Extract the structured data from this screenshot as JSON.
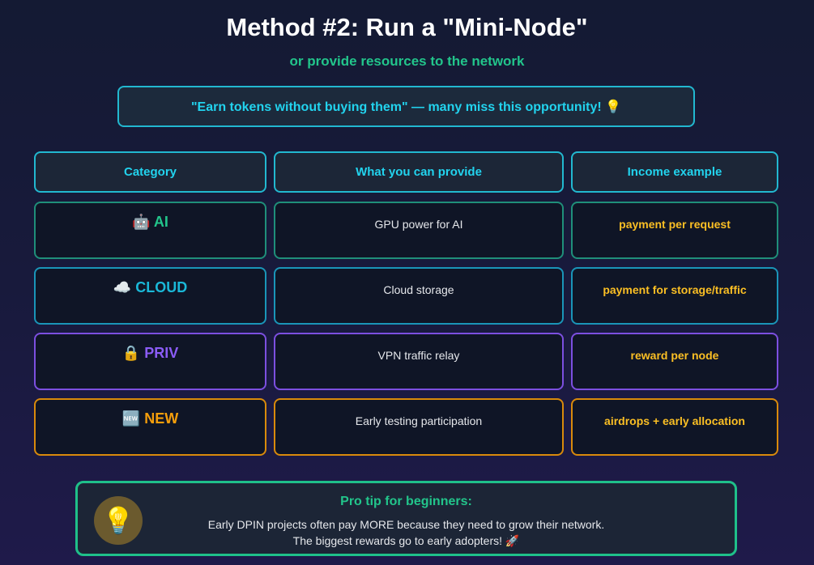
{
  "title": "Method #2: Run a \"Mini-Node\"",
  "subtitle": "or provide resources to the network",
  "banner": "\"Earn tokens without buying them\" — many miss this opportunity! 💡",
  "headers": [
    "Category",
    "What you can provide",
    "Income example"
  ],
  "rows": [
    {
      "icon": "🤖",
      "category": "AI",
      "provide": "GPU power for AI",
      "income": "payment per request",
      "color": "#22c58b",
      "border": "#1f8f7a"
    },
    {
      "icon": "☁️",
      "category": "CLOUD",
      "provide": "Cloud storage",
      "income": "payment for storage/traffic",
      "color": "#1ab8d8",
      "border": "#1a95b8"
    },
    {
      "icon": "🔒",
      "category": "PRIV",
      "provide": "VPN traffic relay",
      "income": "reward per node",
      "color": "#8b5cf6",
      "border": "#7c4fe0"
    },
    {
      "icon": "🆕",
      "category": "NEW",
      "provide": "Early testing participation",
      "income": "airdrops + early allocation",
      "color": "#f59e0b",
      "border": "#d98a0b"
    }
  ],
  "tip": {
    "icon": "💡",
    "title": "Pro tip for beginners:",
    "line1": "Early DPIN projects often pay MORE because they need to grow their network.",
    "line2": "The biggest rewards go to early adopters! 🚀"
  }
}
